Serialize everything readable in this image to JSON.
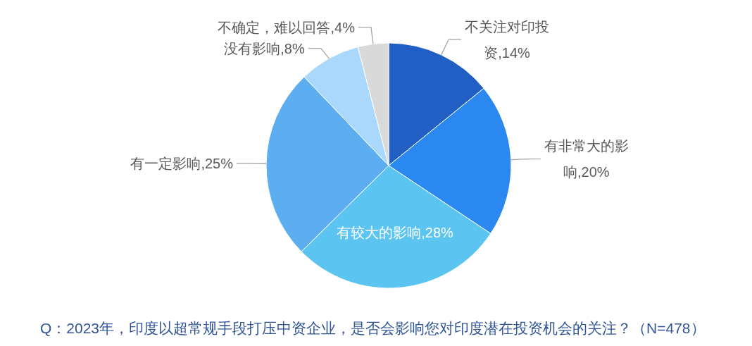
{
  "chart_data": {
    "type": "pie",
    "categories": [
      "不关注对印投资",
      "有非常大的影响",
      "有较大的影响",
      "有一定影响",
      "没有影响",
      "不确定，难以回答"
    ],
    "values": [
      14,
      20,
      28,
      25,
      8,
      4
    ],
    "value_labels": [
      "14%",
      "20%",
      "28%",
      "25%",
      "8%",
      "4%"
    ],
    "colors": [
      "#215fc4",
      "#2a88f0",
      "#5bc4f0",
      "#5daef0",
      "#a9d8fc",
      "#d9d9d9"
    ],
    "annotations": [
      "Q：2023年，印度以超常规手段打压中资企业，是否会影响您对印度潜在投资机会的关注？（N=478）"
    ]
  }
}
